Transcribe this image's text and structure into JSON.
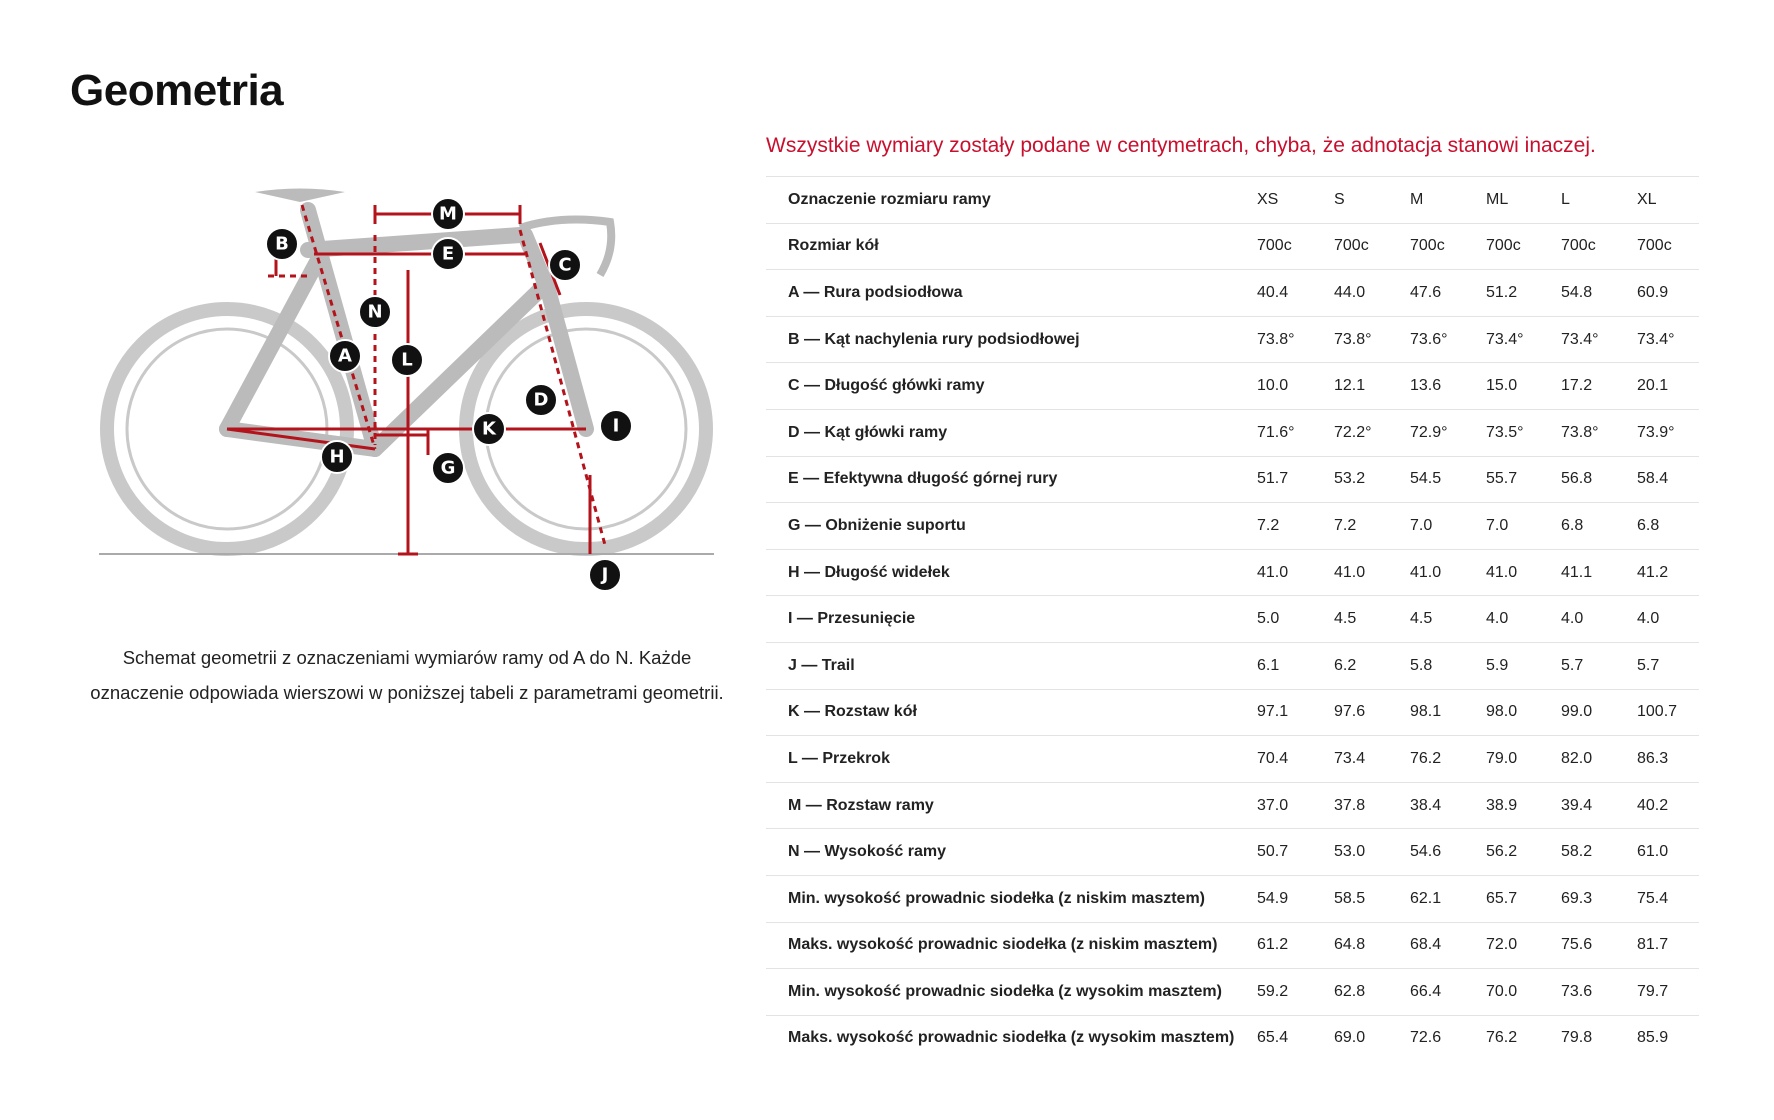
{
  "header": {
    "title": "Geometria"
  },
  "note": "Wszystkie wymiary zostały podane w centymetrach, chyba, że adnotacja stanowi inaczej.",
  "diagram": {
    "labels": {
      "M": "M",
      "B": "B",
      "E": "E",
      "C": "C",
      "N": "N",
      "A": "A",
      "L": "L",
      "D": "D",
      "K": "K",
      "I": "I",
      "H": "H",
      "G": "G",
      "J": "J"
    },
    "caption": [
      "Schemat geometrii z oznaczeniami wymiarów ramy od A do N. Każde",
      "oznaczenie odpowiada wierszowi w poniższej tabeli z parametrami geometrii."
    ]
  },
  "table": {
    "columns": [
      "Oznaczenie rozmiaru ramy",
      "XS",
      "S",
      "M",
      "ML",
      "L",
      "XL"
    ],
    "rows": [
      [
        "Rozmiar kół",
        "700c",
        "700c",
        "700c",
        "700c",
        "700c",
        "700c"
      ],
      [
        "A — Rura podsiodłowa",
        "40.4",
        "44.0",
        "47.6",
        "51.2",
        "54.8",
        "60.9"
      ],
      [
        "B — Kąt nachylenia rury podsiodłowej",
        "73.8°",
        "73.8°",
        "73.6°",
        "73.4°",
        "73.4°",
        "73.4°"
      ],
      [
        "C — Długość główki ramy",
        "10.0",
        "12.1",
        "13.6",
        "15.0",
        "17.2",
        "20.1"
      ],
      [
        "D — Kąt główki ramy",
        "71.6°",
        "72.2°",
        "72.9°",
        "73.5°",
        "73.8°",
        "73.9°"
      ],
      [
        "E — Efektywna długość górnej rury",
        "51.7",
        "53.2",
        "54.5",
        "55.7",
        "56.8",
        "58.4"
      ],
      [
        "G — Obniżenie suportu",
        "7.2",
        "7.2",
        "7.0",
        "7.0",
        "6.8",
        "6.8"
      ],
      [
        "H — Długość widełek",
        "41.0",
        "41.0",
        "41.0",
        "41.0",
        "41.1",
        "41.2"
      ],
      [
        "I — Przesunięcie",
        "5.0",
        "4.5",
        "4.5",
        "4.0",
        "4.0",
        "4.0"
      ],
      [
        "J — Trail",
        "6.1",
        "6.2",
        "5.8",
        "5.9",
        "5.7",
        "5.7"
      ],
      [
        "K — Rozstaw kół",
        "97.1",
        "97.6",
        "98.1",
        "98.0",
        "99.0",
        "100.7"
      ],
      [
        "L — Przekrok",
        "70.4",
        "73.4",
        "76.2",
        "79.0",
        "82.0",
        "86.3"
      ],
      [
        "M — Rozstaw ramy",
        "37.0",
        "37.8",
        "38.4",
        "38.9",
        "39.4",
        "40.2"
      ],
      [
        "N — Wysokość ramy",
        "50.7",
        "53.0",
        "54.6",
        "56.2",
        "58.2",
        "61.0"
      ],
      [
        "Min. wysokość prowadnic siodełka (z niskim masztem)",
        "54.9",
        "58.5",
        "62.1",
        "65.7",
        "69.3",
        "75.4"
      ],
      [
        "Maks. wysokość prowadnic siodełka (z niskim masztem)",
        "61.2",
        "64.8",
        "68.4",
        "72.0",
        "75.6",
        "81.7"
      ],
      [
        "Min. wysokość prowadnic siodełka (z wysokim masztem)",
        "59.2",
        "62.8",
        "66.4",
        "70.0",
        "73.6",
        "79.7"
      ],
      [
        "Maks. wysokość prowadnic siodełka (z wysokim masztem)",
        "65.4",
        "69.0",
        "72.6",
        "76.2",
        "79.8",
        "85.9"
      ]
    ]
  }
}
